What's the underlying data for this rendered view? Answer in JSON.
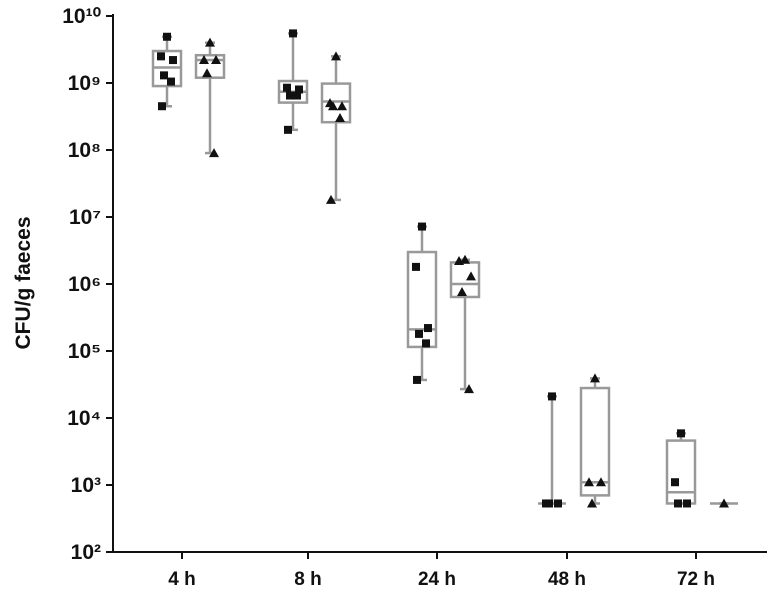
{
  "chart_data": {
    "type": "box",
    "y_label": "CFU/g faeces",
    "categories": [
      "4 h",
      "8 h",
      "24 h",
      "48 h",
      "72 h"
    ],
    "log_scale": true,
    "ylim": [
      100,
      10000000000
    ],
    "yticks": [
      {
        "value": 100,
        "label": "10²"
      },
      {
        "value": 1000,
        "label": "10³"
      },
      {
        "value": 10000,
        "label": "10⁴"
      },
      {
        "value": 100000,
        "label": "10⁵"
      },
      {
        "value": 1000000,
        "label": "10⁶"
      },
      {
        "value": 10000000,
        "label": "10⁷"
      },
      {
        "value": 100000000,
        "label": "10⁸"
      },
      {
        "value": 1000000000,
        "label": "10⁹"
      },
      {
        "value": 10000000000,
        "label": "10¹⁰"
      }
    ],
    "series": [
      {
        "marker": "square",
        "color": "#999999",
        "point_color": "#111111",
        "boxes": [
          {
            "min": 450000000,
            "q1": 900000000,
            "median": 1700000000,
            "q3": 3000000000,
            "max": 4900000000,
            "points": [
              4900000000,
              2500000000,
              2200000000,
              1300000000,
              1050000000,
              450000000
            ]
          },
          {
            "min": 200000000,
            "q1": 510000000,
            "median": 740000000,
            "q3": 1070000000,
            "max": 5500000000,
            "points": [
              5500000000,
              850000000,
              800000000,
              650000000,
              650000000,
              200000000
            ]
          },
          {
            "min": 37000,
            "q1": 115000,
            "median": 210000,
            "q3": 3000000,
            "max": 7200000,
            "points": [
              7200000,
              1800000,
              220000,
              180000,
              130000,
              37000
            ]
          },
          {
            "min": 530,
            "q1": 530,
            "median": 530,
            "q3": 530,
            "max": 21000,
            "points": [
              21000,
              530,
              530,
              530
            ]
          },
          {
            "min": 530,
            "q1": 530,
            "median": 780,
            "q3": 4600,
            "max": 5900,
            "points": [
              5900,
              1100,
              530,
              530
            ]
          }
        ]
      },
      {
        "marker": "triangle",
        "color": "#999999",
        "point_color": "#111111",
        "boxes": [
          {
            "min": 90000000,
            "q1": 1200000000,
            "median": 2200000000,
            "q3": 2600000000,
            "max": 4000000000,
            "points": [
              4000000000,
              2200000000,
              2200000000,
              1400000000,
              90000000
            ]
          },
          {
            "min": 18000000,
            "q1": 260000000,
            "median": 530000000,
            "q3": 980000000,
            "max": 2500000000,
            "points": [
              2500000000,
              500000000,
              450000000,
              450000000,
              300000000,
              18000000
            ]
          },
          {
            "min": 27000,
            "q1": 640000,
            "median": 1000000,
            "q3": 2100000,
            "max": 2300000,
            "points": [
              2300000,
              2200000,
              1300000,
              760000,
              27000
            ]
          },
          {
            "min": 530,
            "q1": 700,
            "median": 1100,
            "q3": 28000,
            "max": 39000,
            "points": [
              39000,
              1100,
              1100,
              530
            ]
          },
          {
            "min": 530,
            "q1": 530,
            "median": 530,
            "q3": 530,
            "max": 530,
            "points": [
              530
            ]
          }
        ]
      }
    ]
  }
}
